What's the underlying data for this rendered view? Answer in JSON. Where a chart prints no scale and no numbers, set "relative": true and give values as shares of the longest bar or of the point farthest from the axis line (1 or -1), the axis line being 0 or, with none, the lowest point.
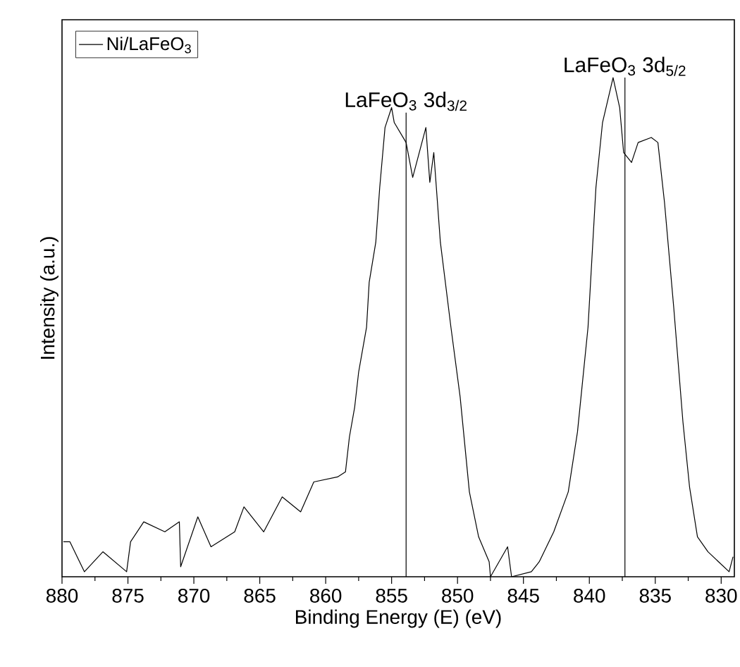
{
  "chart_data": {
    "type": "line",
    "relative": true,
    "xlabel": "Binding Energy (E) (eV)",
    "ylabel": "Intensity (a.u.)",
    "xlim": [
      880,
      829
    ],
    "xticks": [
      880,
      875,
      870,
      865,
      860,
      855,
      850,
      845,
      840,
      835,
      830
    ],
    "legend": "top left",
    "grid": false,
    "marker": "none",
    "line_style": "solid",
    "series": [
      {
        "name": "Ni/LaFeO$_{3}$",
        "color": "#000000",
        "x": [
          879.9,
          879.4,
          878.3,
          876.9,
          875.1,
          874.8,
          873.8,
          872.2,
          871.1,
          871.0,
          869.7,
          868.7,
          866.9,
          866.2,
          864.7,
          863.3,
          861.9,
          860.9,
          859.1,
          858.5,
          858.2,
          857.8,
          857.5,
          856.9,
          856.7,
          856.2,
          855.9,
          855.5,
          855.0,
          854.8,
          853.9,
          853.4,
          853.0,
          852.4,
          852.1,
          851.8,
          851.3,
          850.5,
          849.8,
          849.1,
          848.4,
          847.6,
          847.5,
          846.2,
          845.9,
          844.4,
          843.8,
          842.7,
          841.6,
          840.9,
          840.1,
          839.5,
          839.0,
          838.2,
          837.7,
          837.4,
          836.8,
          836.3,
          835.3,
          834.8,
          834.3,
          833.6,
          832.9,
          832.4,
          831.8,
          831.0,
          830.2,
          829.4,
          829.1
        ],
        "values": [
          0.07,
          0.07,
          0.01,
          0.05,
          0.01,
          0.07,
          0.11,
          0.09,
          0.11,
          0.02,
          0.12,
          0.06,
          0.09,
          0.14,
          0.09,
          0.16,
          0.13,
          0.19,
          0.2,
          0.21,
          0.28,
          0.34,
          0.41,
          0.5,
          0.59,
          0.67,
          0.78,
          0.9,
          0.94,
          0.91,
          0.87,
          0.8,
          0.84,
          0.9,
          0.79,
          0.85,
          0.67,
          0.5,
          0.36,
          0.17,
          0.08,
          0.03,
          0.0,
          0.06,
          0.0,
          0.01,
          0.03,
          0.09,
          0.17,
          0.29,
          0.5,
          0.78,
          0.91,
          1.0,
          0.94,
          0.85,
          0.83,
          0.87,
          0.88,
          0.87,
          0.75,
          0.54,
          0.31,
          0.18,
          0.08,
          0.05,
          0.03,
          0.01,
          0.04
        ]
      }
    ],
    "ref_lines": [
      {
        "axis": "x",
        "value": 853.9,
        "label": "LaFeO$_{3}$ 3d$_{3/2}$",
        "color": "#000000"
      },
      {
        "axis": "x",
        "value": 837.3,
        "label": "LaFeO$_{3}$ 3d$_{5/2}$",
        "color": "#000000"
      }
    ]
  }
}
